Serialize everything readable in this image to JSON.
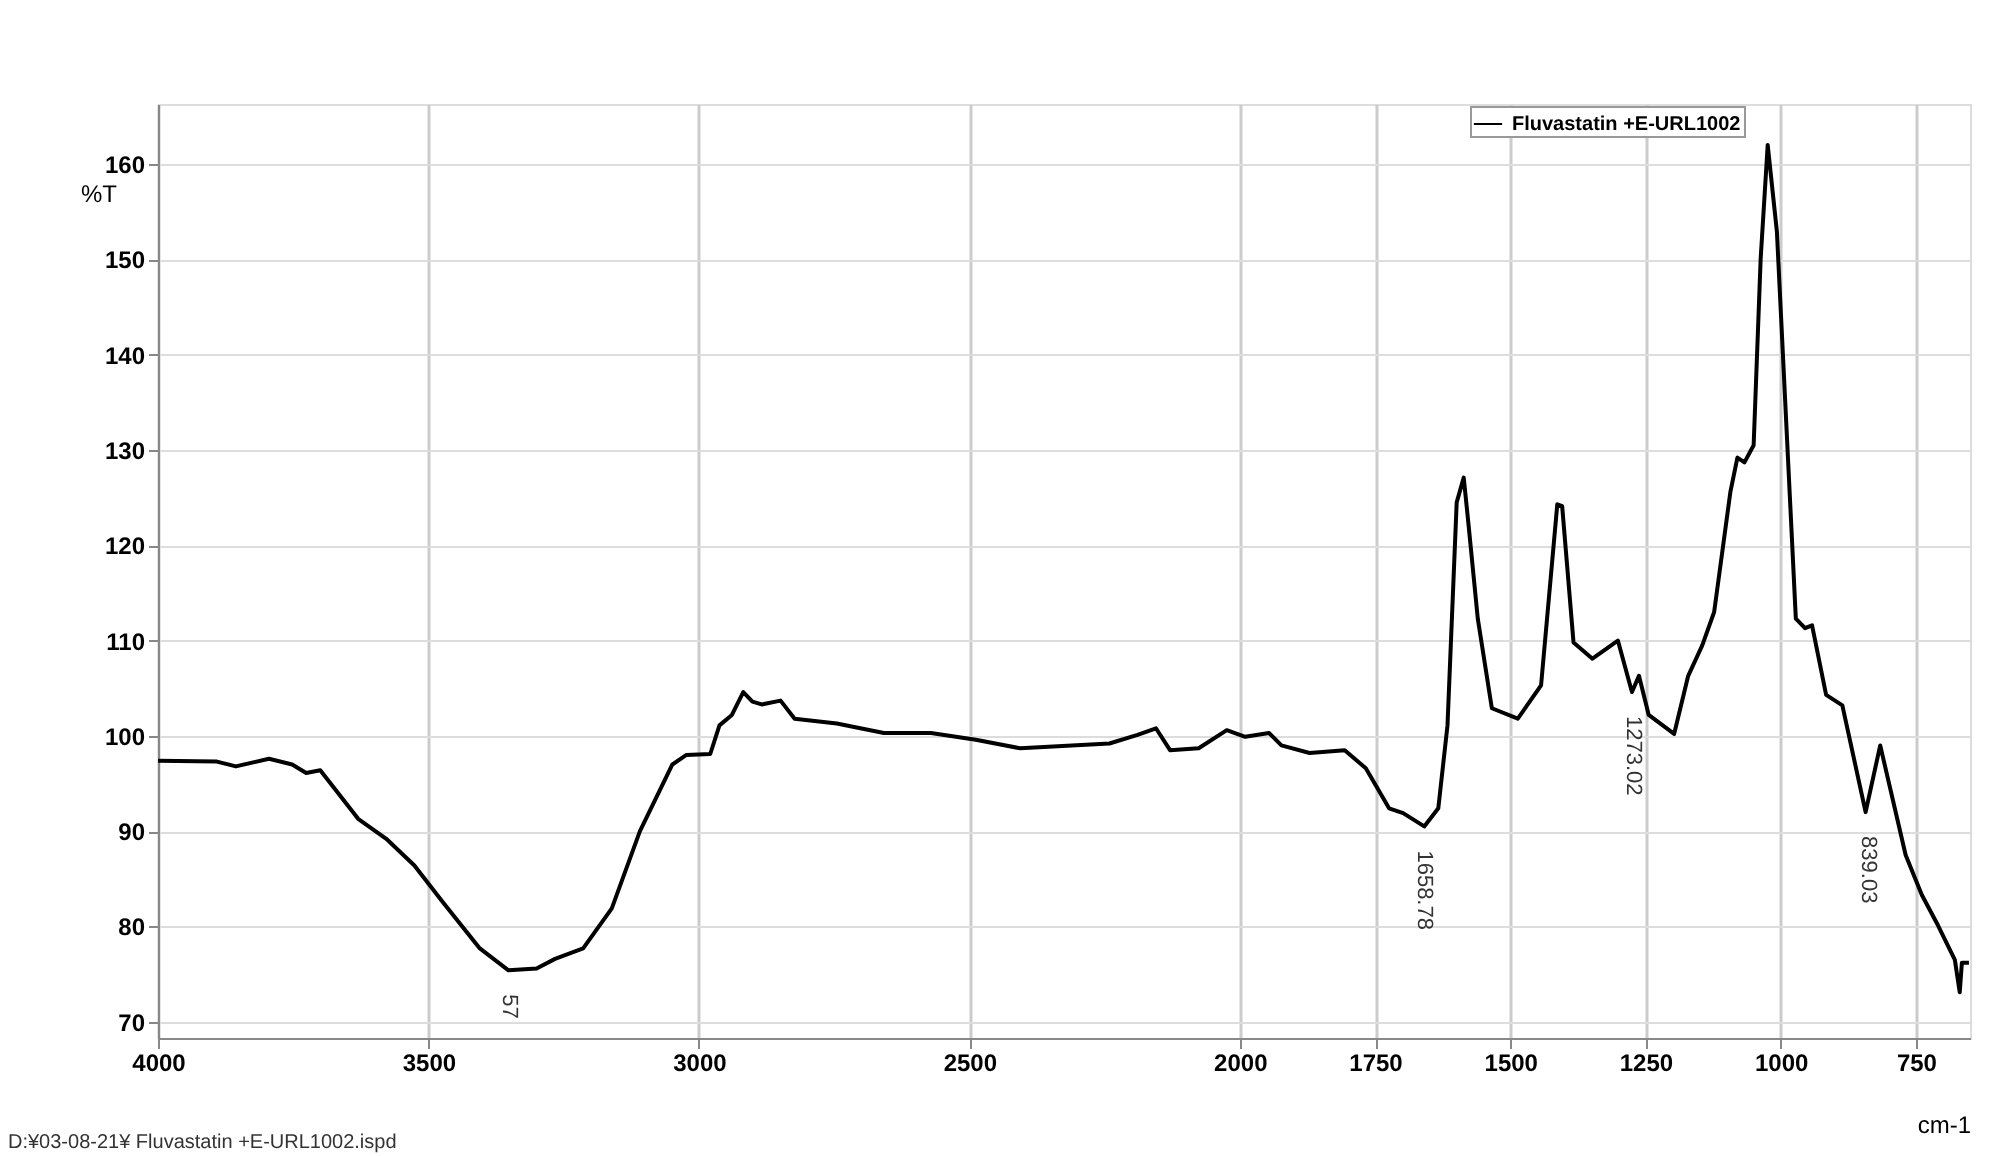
{
  "chart_data": {
    "type": "line",
    "xlabel": "cm-1",
    "ylabel": "%T",
    "xlim": [
      4000,
      650
    ],
    "ylim": [
      68.3,
      166.3
    ],
    "xticks": [
      4000,
      3500,
      3000,
      2500,
      2000,
      1750,
      1500,
      1250,
      1000,
      750
    ],
    "yticks": [
      70,
      80,
      90,
      100,
      110,
      120,
      130,
      140,
      150,
      160
    ],
    "grid": true,
    "legend": "top right",
    "line_style": "solid",
    "series": [
      {
        "name": "Fluvastatin +E-URL1002",
        "color": "#000000",
        "x": [
          4000,
          3891,
          3856,
          3795,
          3752,
          3726,
          3700,
          3630,
          3578,
          3526,
          3474,
          3405,
          3352,
          3300,
          3266,
          3214,
          3161,
          3109,
          3049,
          3023,
          2979,
          2962,
          2939,
          2918,
          2901,
          2884,
          2849,
          2823,
          2745,
          2658,
          2571,
          2488,
          2406,
          2241,
          2189,
          2155,
          2129,
          2076,
          2024,
          1990,
          1946,
          1923,
          1871,
          1806,
          1767,
          1724,
          1698,
          1659,
          1633,
          1616,
          1599,
          1586,
          1577,
          1560,
          1534,
          1486,
          1443,
          1413,
          1404,
          1383,
          1348,
          1301,
          1275,
          1262,
          1244,
          1197,
          1171,
          1145,
          1123,
          1093,
          1080,
          1067,
          1050,
          1037,
          1024,
          1007,
          972,
          955,
          942,
          916,
          886,
          843,
          816,
          769,
          739,
          709,
          678,
          669,
          665,
          652
        ],
        "values": [
          97.4,
          97.3,
          96.8,
          97.6,
          97.0,
          96.1,
          96.4,
          91.3,
          89.2,
          86.4,
          82.6,
          77.7,
          75.4,
          75.6,
          76.6,
          77.7,
          81.9,
          90.0,
          97.0,
          98.0,
          98.1,
          101.1,
          102.2,
          104.6,
          103.6,
          103.3,
          103.7,
          101.8,
          101.3,
          100.3,
          100.3,
          99.6,
          98.7,
          99.2,
          100.1,
          100.8,
          98.5,
          98.7,
          100.6,
          99.9,
          100.3,
          99.0,
          98.2,
          98.5,
          96.6,
          92.4,
          91.9,
          90.5,
          92.4,
          101.1,
          124.5,
          127.1,
          122.1,
          112.3,
          102.9,
          101.8,
          105.3,
          124.3,
          124.1,
          109.8,
          108.1,
          110.0,
          104.6,
          106.3,
          102.2,
          100.2,
          106.3,
          109.5,
          113.0,
          125.6,
          129.2,
          128.7,
          130.5,
          150.1,
          162.0,
          152.9,
          112.3,
          111.3,
          111.6,
          104.3,
          103.2,
          92.0,
          99.0,
          87.5,
          83.3,
          80.1,
          76.5,
          73.1,
          76.2,
          76.2
        ]
      }
    ],
    "annotations": [
      {
        "text": "57",
        "x": 3352,
        "y": 75.4
      },
      {
        "text": "1658.78",
        "x": 1658.78,
        "y": 90.5
      },
      {
        "text": "1273.02",
        "x": 1273.02,
        "y": 104.6
      },
      {
        "text": "839.03",
        "x": 839.03,
        "y": 92.0
      },
      "D:¥03-08-21¥ Fluvastatin +E-URL1002.ispd"
    ]
  }
}
